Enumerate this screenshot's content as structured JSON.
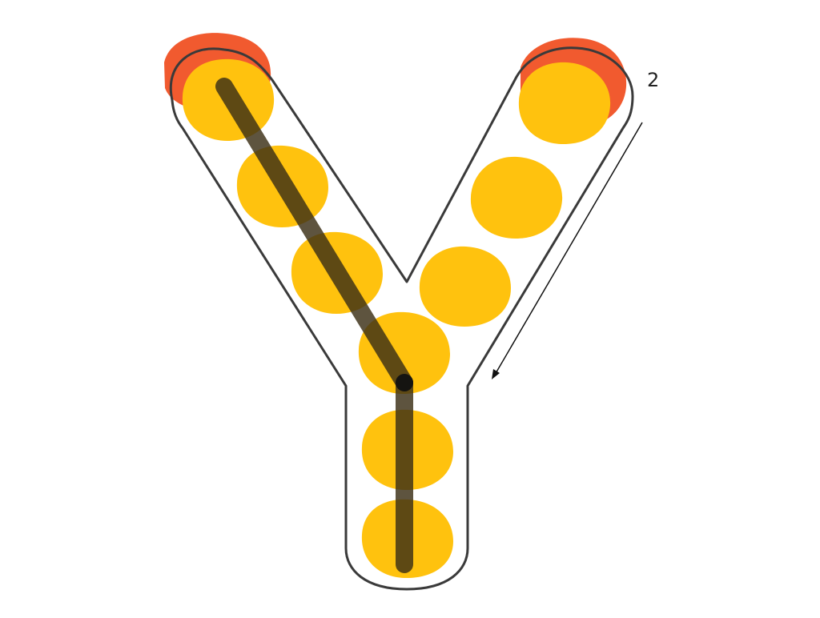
{
  "letter": "Y",
  "stroke_number": "2",
  "colors": {
    "background": "#ffffff",
    "outline": "#3a3a3a",
    "dot": "#ffc20e",
    "start_dot": "#f15a2f",
    "traced_path": "#3b2f16",
    "arrow": "#111111"
  },
  "stroke_count": 2,
  "completed_strokes": 1,
  "icons": {
    "direction_arrow": "arrow-down-left-icon"
  }
}
